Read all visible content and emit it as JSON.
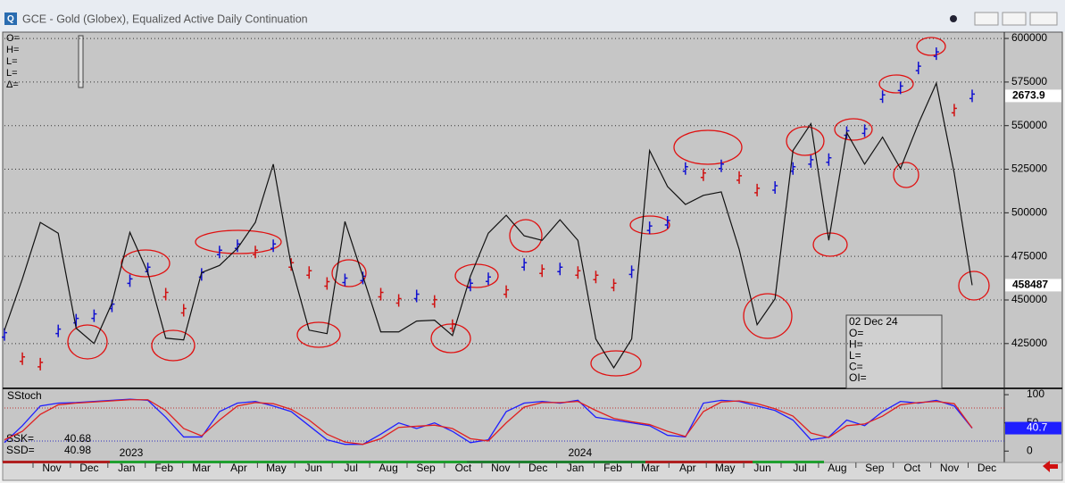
{
  "window": {
    "title": "GCE - Gold (Globex), Equalized Active Daily Continuation"
  },
  "readout": {
    "fields": [
      "O=",
      "H=",
      "L=",
      "L=",
      "Δ="
    ]
  },
  "data_window": {
    "date": "02 Dec 24",
    "fields": [
      "O=",
      "H=",
      "L=",
      "C=",
      "OI="
    ]
  },
  "chart_data": [
    {
      "type": "bar",
      "price_values": [
        1757,
        1664,
        1643,
        1771,
        1812,
        1829,
        1867,
        1964,
        2009,
        1912,
        1850,
        1988,
        2074,
        2098,
        2074,
        2098,
        2026,
        1995,
        1953,
        1967,
        1974,
        1912,
        1888,
        1905,
        1884,
        1791,
        1947,
        1971,
        1922,
        2026,
        2002,
        2009,
        1995,
        1978,
        1947,
        1998,
        2167,
        2188,
        2395,
        2371,
        2405,
        2360,
        2312,
        2322,
        2395,
        2422,
        2429,
        2533,
        2540,
        2671,
        2705,
        2781,
        2836,
        2619,
        2673.9
      ],
      "price_ylim": [
        1550,
        2912
      ],
      "up_color": "#1010d0",
      "down_color": "#d01010",
      "oi_values": [
        432700,
        462100,
        494500,
        488300,
        433800,
        425000,
        448200,
        488800,
        465700,
        428100,
        427100,
        465700,
        469800,
        479600,
        494500,
        527900,
        469800,
        432700,
        430700,
        495000,
        463600,
        431700,
        431700,
        437900,
        438400,
        429600,
        463600,
        488300,
        498600,
        486800,
        484200,
        496000,
        484200,
        427600,
        411100,
        427600,
        535700,
        515100,
        504800,
        510000,
        512000,
        479000,
        435800,
        450700,
        535700,
        551100,
        484200,
        546000,
        527900,
        543400,
        525400,
        551100,
        574300,
        522800,
        458487
      ],
      "oi_color": "#111111",
      "ylim": [
        399300,
        602600
      ],
      "yticks": [
        600000,
        575000,
        550000,
        525000,
        500000,
        475000,
        450000,
        425000
      ],
      "grid": true,
      "categories": [
        "Nov",
        "Dec",
        "Jan",
        "Feb",
        "Mar",
        "Apr",
        "May",
        "Jun",
        "Jul",
        "Aug",
        "Sep",
        "Oct",
        "Nov",
        "Dec",
        "Jan",
        "Feb",
        "Mar",
        "Apr",
        "May",
        "Jun",
        "Jul",
        "Aug",
        "Sep",
        "Oct",
        "Nov",
        "Dec"
      ],
      "years": [
        "2023",
        "2024"
      ]
    },
    {
      "type": "line",
      "title": "SStoch",
      "series": [
        {
          "name": "SSK=",
          "color": "#1f1fff",
          "last_value_label": "40.7",
          "values": [
            15,
            45,
            80,
            85,
            86,
            88,
            90,
            92,
            90,
            60,
            25,
            25,
            70,
            85,
            88,
            80,
            70,
            45,
            20,
            12,
            12,
            30,
            50,
            40,
            50,
            35,
            15,
            20,
            70,
            85,
            88,
            85,
            90,
            60,
            55,
            50,
            45,
            28,
            25,
            85,
            90,
            88,
            80,
            72,
            55,
            20,
            25,
            55,
            45,
            70,
            88,
            85,
            90,
            80,
            40.68
          ]
        },
        {
          "name": "SSD=",
          "color": "#e02020",
          "values": [
            20,
            35,
            65,
            82,
            85,
            87,
            89,
            91,
            91,
            72,
            40,
            27,
            55,
            80,
            86,
            84,
            74,
            55,
            30,
            16,
            12,
            22,
            42,
            44,
            46,
            40,
            22,
            18,
            50,
            78,
            86,
            86,
            88,
            72,
            58,
            52,
            47,
            35,
            26,
            70,
            87,
            89,
            84,
            75,
            62,
            32,
            24,
            45,
            48,
            62,
            82,
            86,
            88,
            84,
            40.98
          ]
        }
      ],
      "ylim": [
        -17,
        108
      ],
      "yticks": [
        0,
        50,
        100
      ]
    }
  ]
}
